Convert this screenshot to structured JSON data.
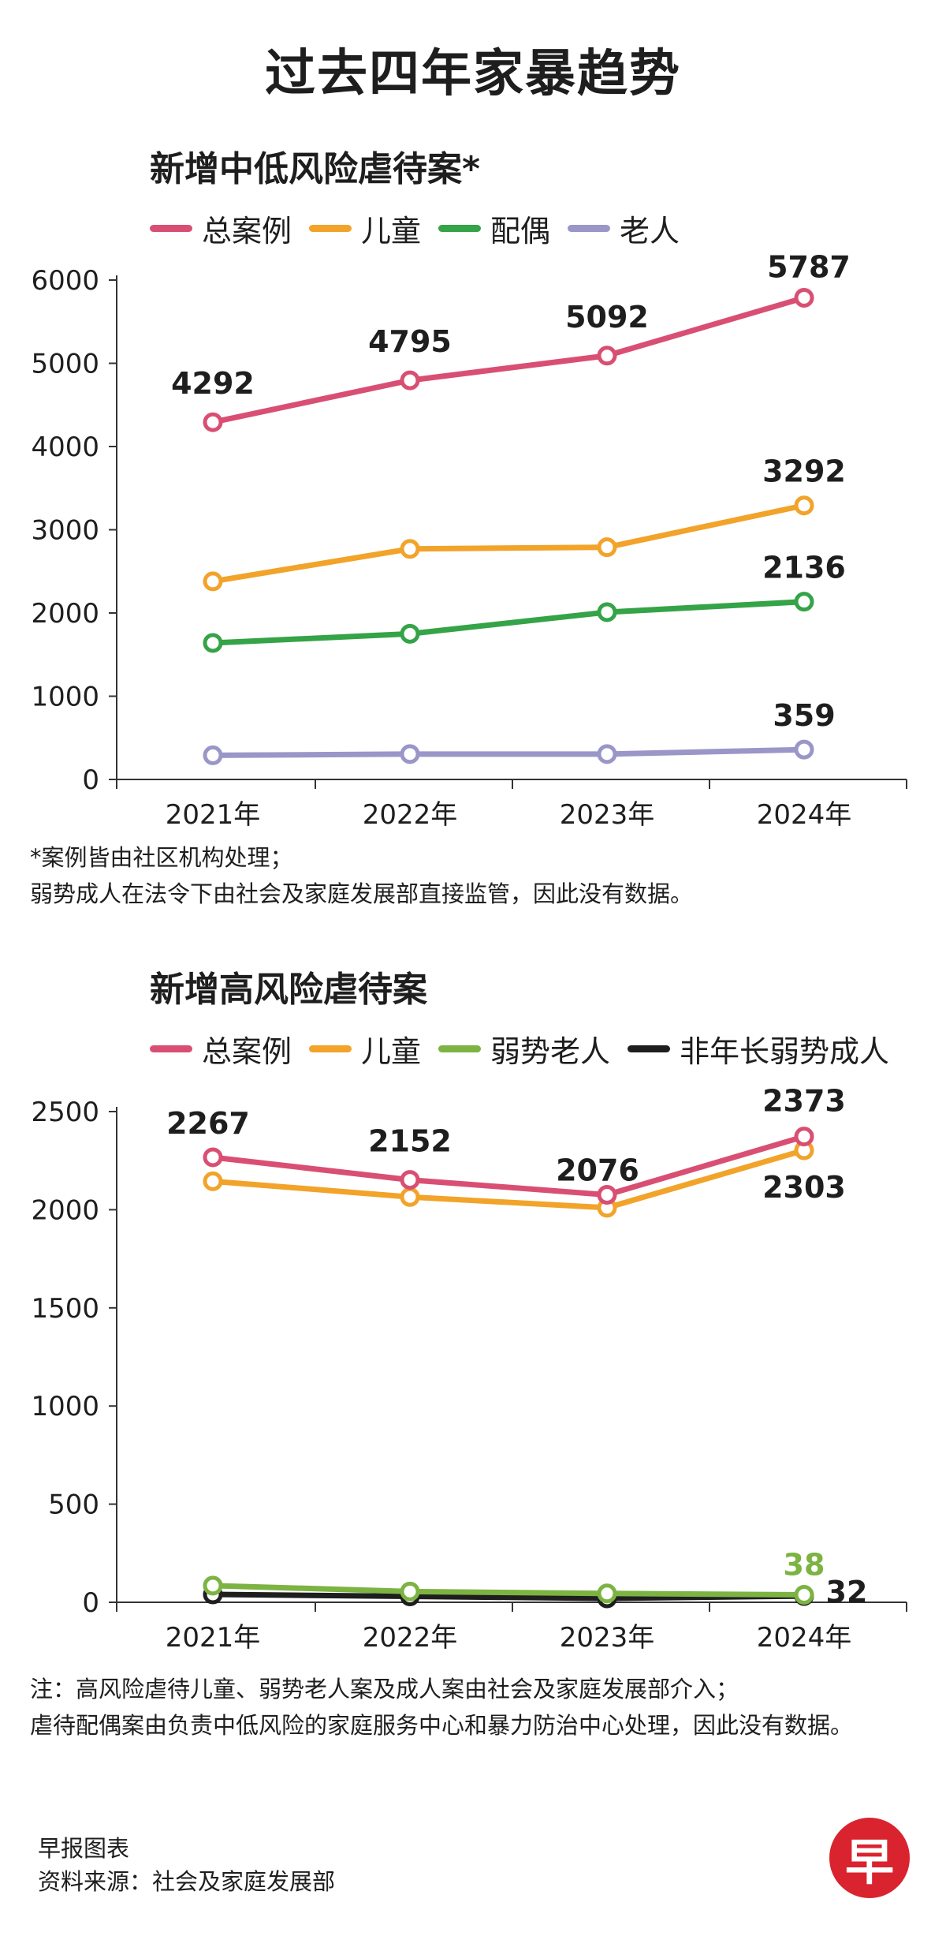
{
  "title": "过去四年家暴趋势",
  "chart_data": [
    {
      "type": "line",
      "title": "新增中低风险虐待案*",
      "categories": [
        "2021年",
        "2022年",
        "2023年",
        "2024年"
      ],
      "ylim": [
        0,
        6000
      ],
      "yticks": [
        0,
        1000,
        2000,
        3000,
        4000,
        5000,
        6000
      ],
      "series": [
        {
          "name": "总案例",
          "color": "#d94f73",
          "values": [
            4292,
            4795,
            5092,
            5787
          ],
          "labels": [
            "4292",
            "4795",
            "5092",
            "5787"
          ],
          "label_color": "#1e1e1e"
        },
        {
          "name": "儿童",
          "color": "#f2a32a",
          "values": [
            2380,
            2770,
            2790,
            3292
          ],
          "labels": [
            null,
            null,
            null,
            "3292"
          ],
          "label_color": "#1e1e1e"
        },
        {
          "name": "配偶",
          "color": "#35a347",
          "values": [
            1640,
            1750,
            2010,
            2136
          ],
          "labels": [
            null,
            null,
            null,
            "2136"
          ],
          "label_color": "#1e1e1e"
        },
        {
          "name": "老人",
          "color": "#9a96c8",
          "values": [
            290,
            305,
            305,
            359
          ],
          "labels": [
            null,
            null,
            null,
            "359"
          ],
          "label_color": "#1e1e1e"
        }
      ],
      "notes": [
        "*案例皆由社区机构处理；",
        "弱势成人在法令下由社会及家庭发展部直接监管，因此没有数据。"
      ]
    },
    {
      "type": "line",
      "title": "新增高风险虐待案",
      "categories": [
        "2021年",
        "2022年",
        "2023年",
        "2024年"
      ],
      "ylim": [
        0,
        2500
      ],
      "yticks": [
        0,
        500,
        1000,
        1500,
        2000,
        2500
      ],
      "series": [
        {
          "name": "总案例",
          "color": "#d94f73",
          "values": [
            2267,
            2152,
            2076,
            2373
          ],
          "labels": [
            "2267",
            "2152",
            "2076",
            "2373"
          ],
          "label_color": "#1e1e1e"
        },
        {
          "name": "儿童",
          "color": "#f2a32a",
          "values": [
            2145,
            2065,
            2010,
            2303
          ],
          "labels": [
            null,
            null,
            null,
            "2303"
          ],
          "label_color": "#1e1e1e"
        },
        {
          "name": "弱势老人",
          "color": "#7cb342",
          "values": [
            85,
            55,
            45,
            38
          ],
          "labels": [
            null,
            null,
            null,
            "38"
          ],
          "label_color": "#7cb342"
        },
        {
          "name": "非年长弱势成人",
          "color": "#1e1e1e",
          "values": [
            40,
            30,
            20,
            32
          ],
          "labels": [
            null,
            null,
            null,
            "32"
          ],
          "label_color": "#1e1e1e"
        }
      ],
      "notes": [
        "注：高风险虐待儿童、弱势老人案及成人案由社会及家庭发展部介入；",
        "虐待配偶案由负责中低风险的家庭服务中心和暴力防治中心处理，因此没有数据。"
      ]
    }
  ],
  "footer": {
    "line1": "早报图表",
    "line2": "资料来源：社会及家庭发展部"
  },
  "logo_text": "早"
}
